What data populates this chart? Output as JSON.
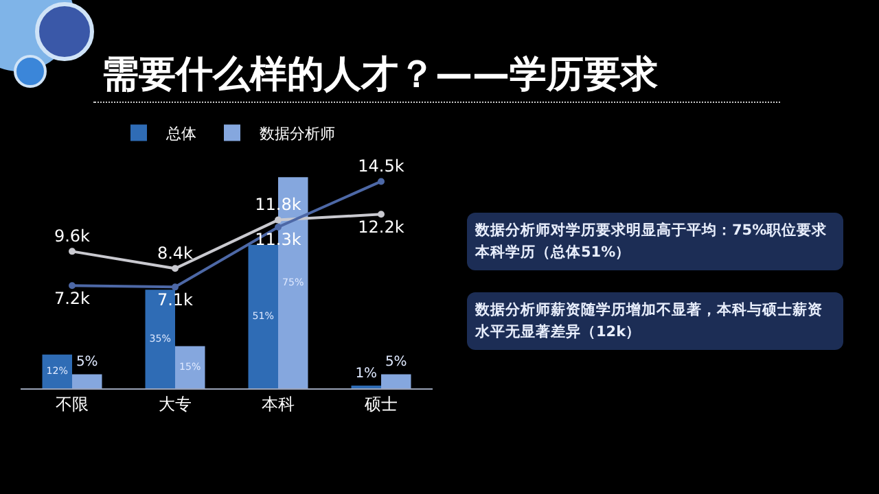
{
  "chart_data": {
    "type": "bar",
    "title": "需要什么样的人才？——学历要求",
    "categories": [
      "不限",
      "大专",
      "本科",
      "硕士"
    ],
    "series": [
      {
        "name": "总体",
        "color": "#2f6cb5",
        "values": [
          12,
          35,
          51,
          1
        ],
        "value_labels": [
          "12%",
          "35%",
          "51%",
          "1%"
        ]
      },
      {
        "name": "数据分析师",
        "color": "#85a7de",
        "values": [
          5,
          15,
          75,
          5
        ],
        "value_labels": [
          "5%",
          "15%",
          "75%",
          "5%"
        ]
      },
      {
        "type": "line",
        "axis": "y2",
        "color": "#c9c9cf",
        "values": [
          9.6,
          8.4,
          11.8,
          12.2
        ],
        "value_labels": [
          "9.6k",
          "8.4k",
          "11.8k",
          "12.2k"
        ]
      },
      {
        "type": "line",
        "axis": "y2",
        "color": "#4d68a6",
        "values": [
          7.2,
          7.1,
          11.3,
          14.5
        ],
        "value_labels": [
          "7.2k",
          "7.1k",
          "11.3k",
          "14.5k"
        ]
      }
    ],
    "tick_labels": "x",
    "grid": false,
    "legend": "top",
    "marker": "circle",
    "annotations": [
      "数据分析师对学历要求明显高于平均：75%职位要求本科学历（总体51%）",
      "数据分析师薪资随学历增加不显著，本科与硕士薪资水平无显著差异（12k）"
    ]
  }
}
